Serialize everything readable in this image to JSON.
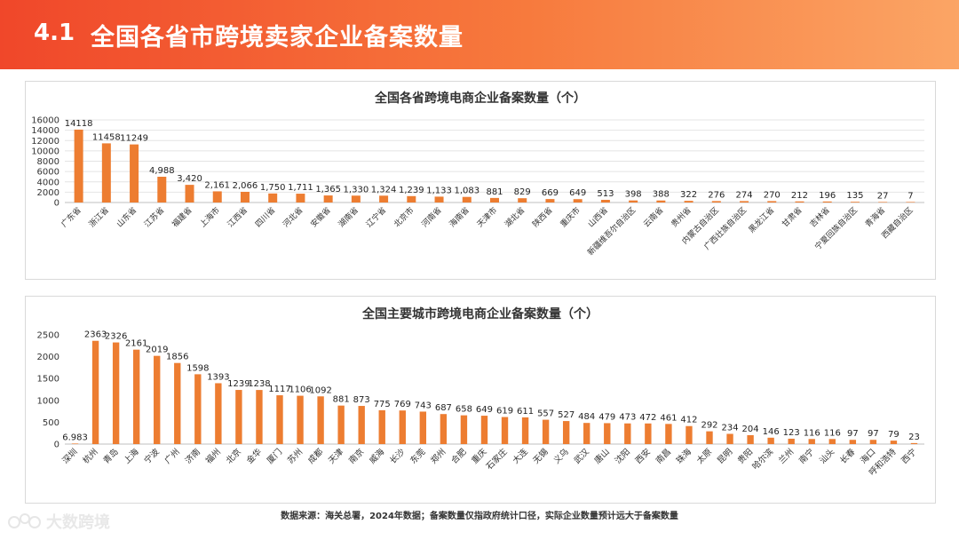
{
  "header": {
    "section_number": "4.1",
    "title": "全国各省市跨境卖家企业备案数量"
  },
  "colors": {
    "bar": "#ed7d31",
    "banner_start": "#f0472a",
    "banner_end": "#fba565"
  },
  "chart_data": [
    {
      "type": "bar",
      "title": "全国各省跨境电商企业备案数量（个）",
      "xlabel": "",
      "ylabel": "",
      "ylim": [
        0,
        16000
      ],
      "yticks": [
        "0",
        "2000",
        "4000",
        "6000",
        "8000",
        "10000",
        "12000",
        "14000",
        "16000"
      ],
      "grid": true,
      "categories": [
        "广东省",
        "浙江省",
        "山东省",
        "江苏省",
        "福建省",
        "上海市",
        "江西省",
        "四川省",
        "河北省",
        "安徽省",
        "湖南省",
        "辽宁省",
        "北京市",
        "河南省",
        "海南省",
        "天津市",
        "湖北省",
        "陕西省",
        "重庆市",
        "山西省",
        "新疆维吾尔自治区",
        "云南省",
        "贵州省",
        "内蒙古自治区",
        "广西壮族自治区",
        "黑龙江省",
        "甘肃省",
        "吉林省",
        "宁夏回族自治区",
        "青海省",
        "西藏自治区"
      ],
      "values": [
        14118,
        11458,
        11249,
        4988,
        3420,
        2161,
        2066,
        1750,
        1711,
        1365,
        1330,
        1324,
        1239,
        1133,
        1083,
        881,
        829,
        669,
        649,
        513,
        398,
        388,
        322,
        276,
        274,
        270,
        212,
        196,
        135,
        27,
        7
      ],
      "labels": [
        "14118",
        "11458",
        "11249",
        "4,988",
        "3,420",
        "2,161",
        "2,066",
        "1,750",
        "1,711",
        "1,365",
        "1,330",
        "1,324",
        "1,239",
        "1,133",
        "1,083",
        "881",
        "829",
        "669",
        "649",
        "513",
        "398",
        "388",
        "322",
        "276",
        "274",
        "270",
        "212",
        "196",
        "135",
        "27",
        "7"
      ]
    },
    {
      "type": "bar",
      "title": "全国主要城市跨境电商企业备案数量（个）",
      "xlabel": "",
      "ylabel": "",
      "ylim": [
        0,
        2500
      ],
      "yticks": [
        "0",
        "500",
        "1000",
        "1500",
        "2000",
        "2500"
      ],
      "grid": false,
      "categories": [
        "深圳",
        "杭州",
        "青岛",
        "上海",
        "宁波",
        "广州",
        "济南",
        "福州",
        "北京",
        "金华",
        "厦门",
        "苏州",
        "成都",
        "天津",
        "南京",
        "威海",
        "长沙",
        "东莞",
        "郑州",
        "合肥",
        "重庆",
        "石家庄",
        "大连",
        "无锡",
        "义乌",
        "武汉",
        "唐山",
        "沈阳",
        "西安",
        "南昌",
        "珠海",
        "太原",
        "昆明",
        "贵阳",
        "哈尔滨",
        "兰州",
        "南宁",
        "汕头",
        "长春",
        "海口",
        "呼和浩特",
        "西宁"
      ],
      "values": [
        6.983,
        2363,
        2326,
        2161,
        2019,
        1856,
        1598,
        1393,
        1239,
        1238,
        1117,
        1106,
        1092,
        881,
        873,
        775,
        769,
        743,
        687,
        658,
        649,
        619,
        611,
        557,
        527,
        484,
        479,
        473,
        472,
        461,
        412,
        292,
        234,
        204,
        146,
        123,
        116,
        116,
        97,
        97,
        79,
        23
      ],
      "labels": [
        "6.983",
        "2363",
        "2326",
        "2161",
        "2019",
        "1856",
        "1598",
        "1393",
        "1239",
        "1238",
        "1117",
        "1106",
        "1092",
        "881",
        "873",
        "775",
        "769",
        "743",
        "687",
        "658",
        "649",
        "619",
        "611",
        "557",
        "527",
        "484",
        "479",
        "473",
        "472",
        "461",
        "412",
        "292",
        "234",
        "204",
        "146",
        "123",
        "116",
        "116",
        "97",
        "97",
        "79",
        "23"
      ]
    }
  ],
  "footer": {
    "source": "数据来源：海关总署，2024年数据；备案数量仅指政府统计口径，实际企业数量预计远大于备案数量"
  },
  "watermark": {
    "text": "大数跨境"
  }
}
